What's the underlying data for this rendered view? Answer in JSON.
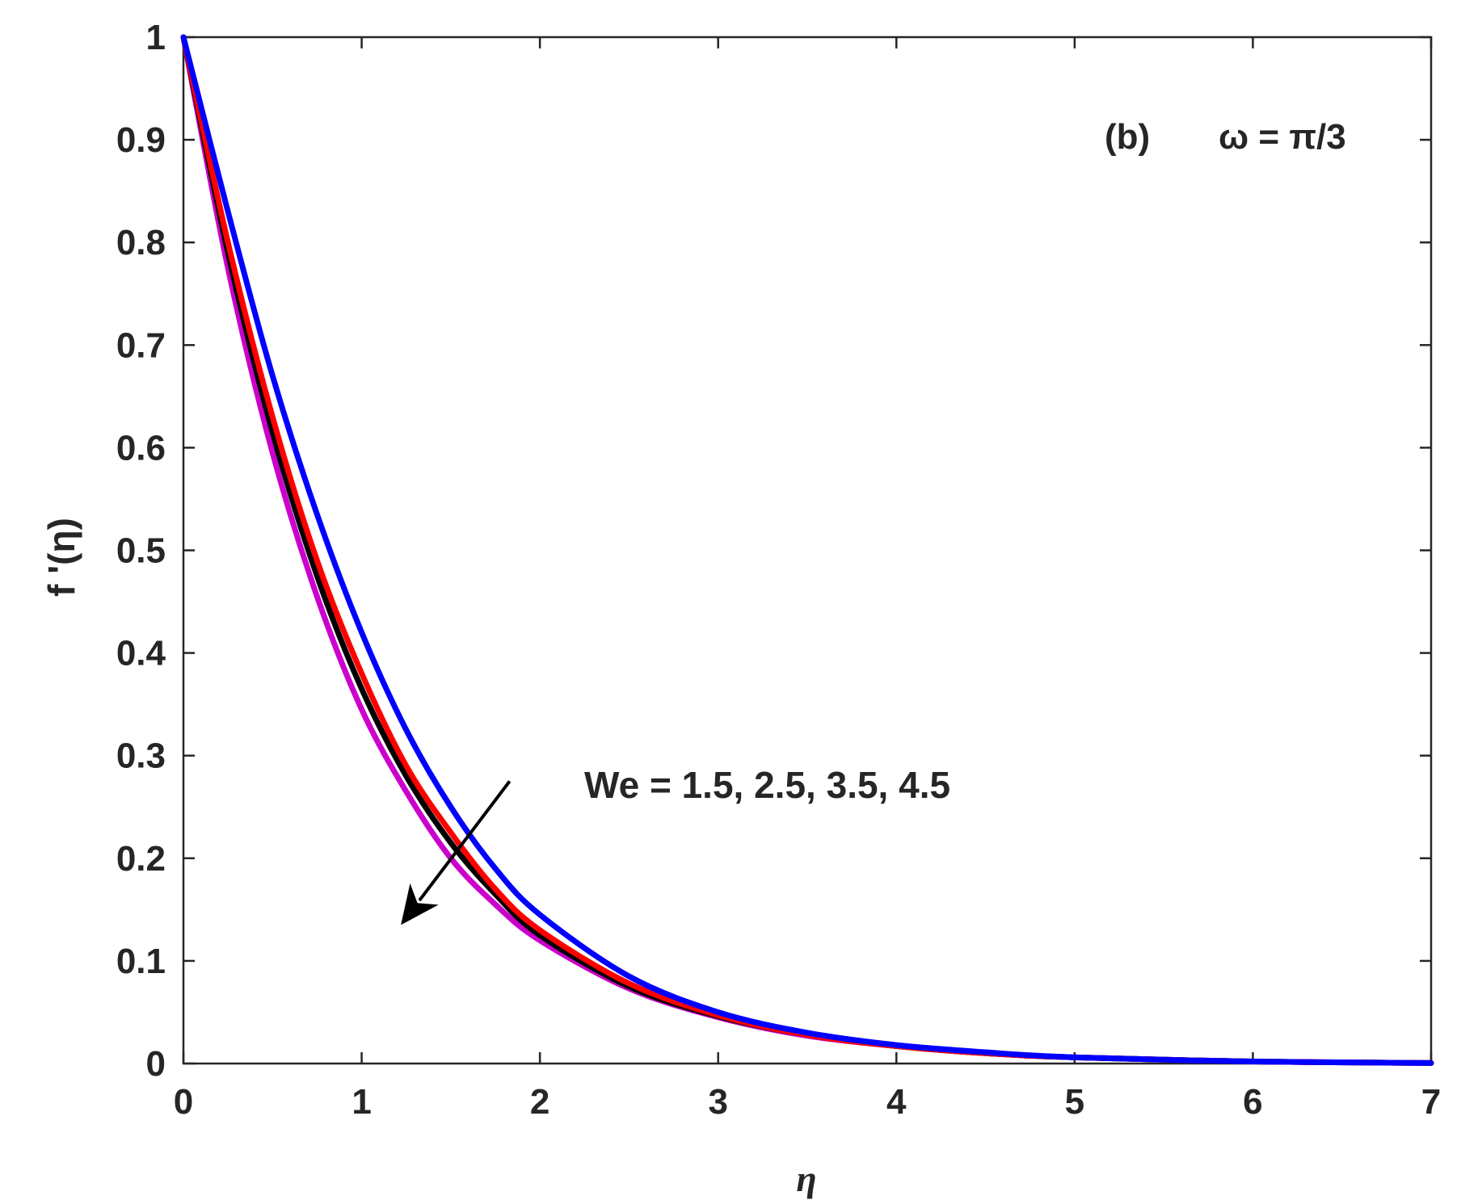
{
  "chart_data": {
    "type": "line",
    "panel_label": "(b)",
    "parameter_label": "ω = π/3",
    "annotation": "We = 1.5, 2.5, 3.5, 4.5",
    "xlabel": "η",
    "ylabel": "f '(η)",
    "xlim": [
      0,
      7
    ],
    "ylim": [
      0,
      1
    ],
    "xticks": [
      "0",
      "1",
      "2",
      "3",
      "4",
      "5",
      "6",
      "7"
    ],
    "yticks": [
      "0",
      "0.1",
      "0.2",
      "0.3",
      "0.4",
      "0.5",
      "0.6",
      "0.7",
      "0.8",
      "0.9",
      "1"
    ],
    "grid": false,
    "series": [
      {
        "color": "#0000ff",
        "x": [
          0,
          0.25,
          0.5,
          0.75,
          1,
          1.25,
          1.5,
          1.75,
          2,
          2.5,
          3,
          3.5,
          4,
          4.5,
          5,
          6,
          7
        ],
        "y": [
          1,
          0.83,
          0.67,
          0.535,
          0.42,
          0.325,
          0.25,
          0.19,
          0.145,
          0.085,
          0.05,
          0.03,
          0.018,
          0.011,
          0.006,
          0.002,
          0.0005
        ]
      },
      {
        "color": "#ff0000",
        "x": [
          0,
          0.25,
          0.5,
          0.75,
          1,
          1.25,
          1.5,
          1.75,
          2,
          2.5,
          3,
          3.5,
          4,
          4.5,
          5,
          6,
          7
        ],
        "y": [
          1,
          0.8,
          0.63,
          0.49,
          0.38,
          0.29,
          0.225,
          0.17,
          0.13,
          0.078,
          0.047,
          0.028,
          0.017,
          0.01,
          0.006,
          0.002,
          0.0005
        ]
      },
      {
        "color": "#000000",
        "x": [
          0,
          0.25,
          0.5,
          0.75,
          1,
          1.25,
          1.5,
          1.75,
          2,
          2.5,
          3,
          3.5,
          4,
          4.5,
          5,
          6,
          7
        ],
        "y": [
          1,
          0.79,
          0.615,
          0.475,
          0.365,
          0.28,
          0.215,
          0.165,
          0.125,
          0.075,
          0.046,
          0.028,
          0.017,
          0.01,
          0.006,
          0.002,
          0.0005
        ]
      },
      {
        "color": "#cc00cc",
        "x": [
          0,
          0.25,
          0.5,
          0.75,
          1,
          1.25,
          1.5,
          1.75,
          2,
          2.5,
          3,
          3.5,
          4,
          4.5,
          5,
          6,
          7
        ],
        "y": [
          1,
          0.775,
          0.595,
          0.455,
          0.345,
          0.265,
          0.2,
          0.155,
          0.12,
          0.073,
          0.045,
          0.027,
          0.017,
          0.01,
          0.006,
          0.002,
          0.0005
        ]
      }
    ],
    "arrow": {
      "from": [
        1.83,
        0.275
      ],
      "to": [
        1.22,
        0.135
      ]
    }
  }
}
